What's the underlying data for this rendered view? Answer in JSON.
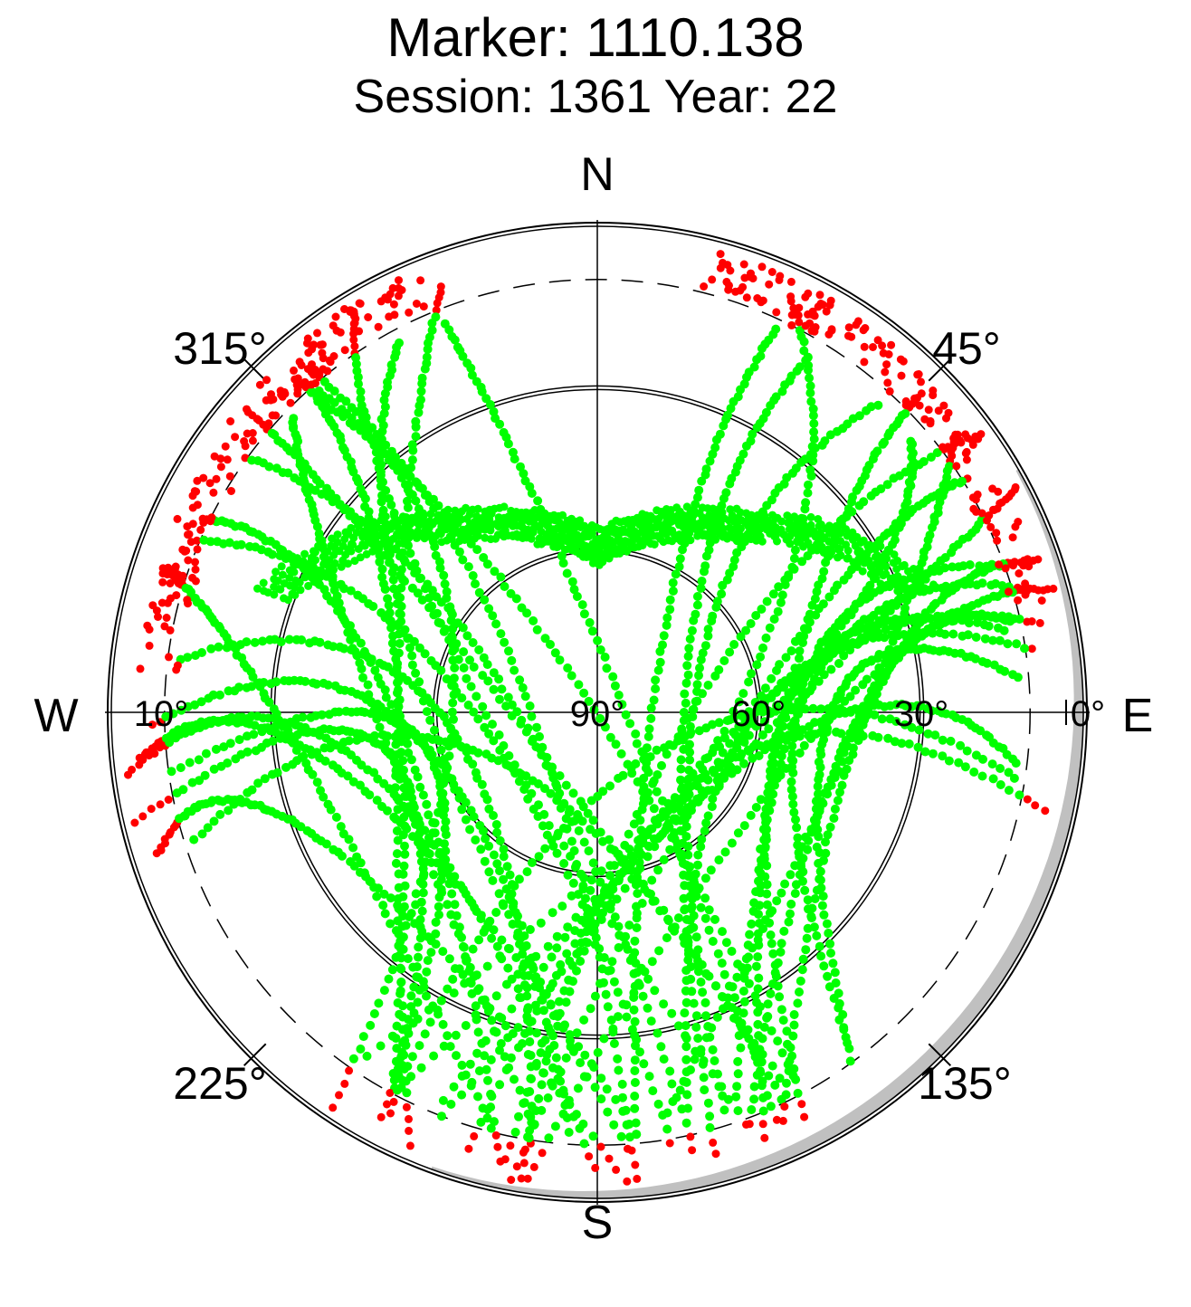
{
  "chart_data": {
    "type": "scatter",
    "projection": "polar-skyplot",
    "title": "Marker: 1110.138",
    "subtitle": "Session: 1361 Year: 22",
    "directions": {
      "north": "N",
      "south": "S",
      "west": "W",
      "east": "E"
    },
    "azimuth_labels": [
      {
        "azimuth": 315,
        "text": "315°"
      },
      {
        "azimuth": 45,
        "text": "45°"
      },
      {
        "azimuth": 225,
        "text": "225°"
      },
      {
        "azimuth": 135,
        "text": "135°"
      }
    ],
    "elevation_labels": [
      {
        "elevation": 10,
        "text": "10°",
        "side": "west"
      },
      {
        "elevation": 90,
        "text": "90°",
        "side": "center"
      },
      {
        "elevation": 60,
        "text": "60°",
        "side": "east"
      },
      {
        "elevation": 30,
        "text": "30°",
        "side": "east"
      },
      {
        "elevation": 0,
        "text": "0°",
        "side": "east"
      }
    ],
    "elevation_circles": [
      0,
      30,
      60
    ],
    "dashed_circle_elevation": 10,
    "radial_scale": "linear-elevation",
    "horizon_mask_color": "#c0c0c0",
    "colors": {
      "tracked": "#00ff00",
      "low_elevation": "#ff0000",
      "grid": "#000000"
    },
    "series": [
      {
        "color": "#00ff00",
        "role": "tracked",
        "tracks": 44
      },
      {
        "color": "#ff0000",
        "role": "low_elevation"
      }
    ],
    "approx_track_count": 44,
    "north_gap": {
      "azimuth_min": -45,
      "azimuth_max": 45,
      "elevation_min": 45
    }
  }
}
